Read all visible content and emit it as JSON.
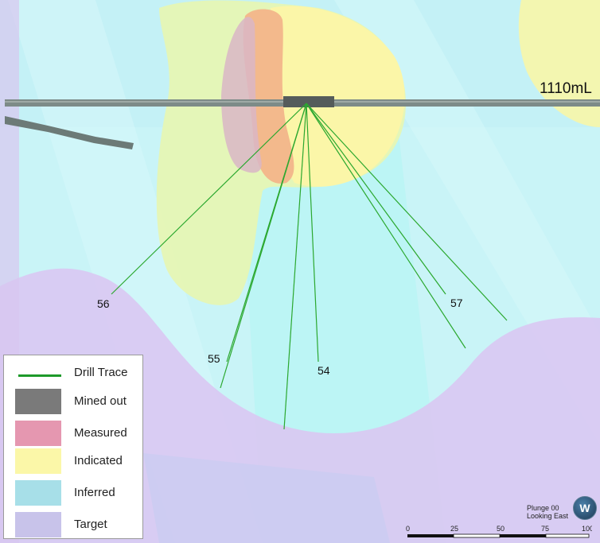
{
  "level_label": "1110mL",
  "drill_holes": [
    "56",
    "55",
    "54",
    "57"
  ],
  "legend": [
    {
      "label": "Drill Trace",
      "color": "#1e9a2a",
      "kind": "line"
    },
    {
      "label": "Mined out",
      "color": "#7a7a7a",
      "kind": "box"
    },
    {
      "label": "Measured",
      "color": "#e597b0",
      "kind": "box"
    },
    {
      "label": "Indicated",
      "color": "#fbf7a8",
      "kind": "box"
    },
    {
      "label": "Inferred",
      "color": "#a7dfe8",
      "kind": "box"
    },
    {
      "label": "Target",
      "color": "#c8c3ea",
      "kind": "box"
    }
  ],
  "orientation": {
    "line1": "Plunge 00",
    "line2": "Looking East"
  },
  "scale": {
    "ticks": [
      "0",
      "25",
      "50",
      "75",
      "100"
    ]
  },
  "logo_letter": "W"
}
